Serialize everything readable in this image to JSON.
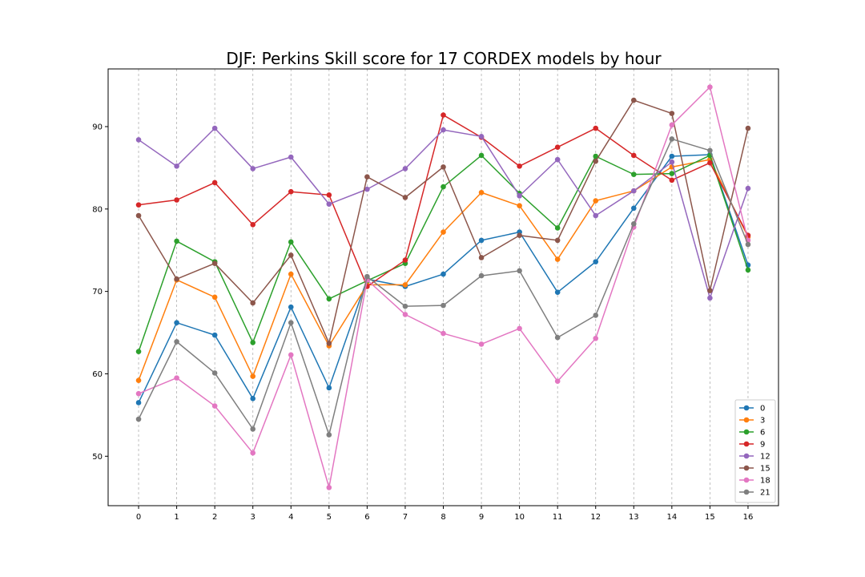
{
  "chart_data": {
    "type": "line",
    "title": "DJF: Perkins Skill score for 17 CORDEX models by hour",
    "xlabel": "",
    "ylabel": "",
    "x": [
      0,
      1,
      2,
      3,
      4,
      5,
      6,
      7,
      8,
      9,
      10,
      11,
      12,
      13,
      14,
      15,
      16
    ],
    "xlim": [
      -0.8,
      16.8
    ],
    "ylim": [
      44,
      97
    ],
    "yticks": [
      50,
      60,
      70,
      80,
      90
    ],
    "grid": "vertical dashed",
    "legend_position": "lower-right",
    "series": [
      {
        "name": "0",
        "color": "#1f77b4",
        "values": [
          56.5,
          66.2,
          64.7,
          57.0,
          68.1,
          58.3,
          71.5,
          70.6,
          72.1,
          76.2,
          77.2,
          69.9,
          73.6,
          80.1,
          86.4,
          86.6,
          73.2
        ]
      },
      {
        "name": "3",
        "color": "#ff7f0e",
        "values": [
          59.2,
          71.4,
          69.3,
          59.7,
          72.1,
          63.4,
          70.8,
          70.8,
          77.2,
          82.0,
          80.4,
          73.9,
          81.0,
          82.2,
          85.1,
          86.0,
          76.6
        ]
      },
      {
        "name": "6",
        "color": "#2ca02c",
        "values": [
          62.7,
          76.1,
          73.6,
          63.8,
          76.0,
          69.1,
          71.3,
          73.4,
          82.7,
          86.5,
          81.9,
          77.7,
          86.4,
          84.2,
          84.3,
          86.5,
          72.6
        ]
      },
      {
        "name": "9",
        "color": "#d62728",
        "values": [
          80.5,
          81.1,
          83.2,
          78.1,
          82.1,
          81.7,
          70.6,
          73.8,
          91.4,
          88.7,
          85.2,
          87.5,
          89.8,
          86.5,
          83.5,
          85.6,
          76.8
        ]
      },
      {
        "name": "12",
        "color": "#9467bd",
        "values": [
          88.4,
          85.2,
          89.8,
          84.9,
          86.3,
          80.6,
          82.4,
          84.9,
          89.6,
          88.8,
          81.6,
          86.0,
          79.2,
          82.2,
          85.7,
          69.2,
          82.5
        ]
      },
      {
        "name": "15",
        "color": "#8c564b",
        "values": [
          79.2,
          71.5,
          73.4,
          68.6,
          74.4,
          63.7,
          83.9,
          81.4,
          85.1,
          74.1,
          76.8,
          76.2,
          85.8,
          93.2,
          91.6,
          70.1,
          89.8
        ]
      },
      {
        "name": "18",
        "color": "#e377c2",
        "values": [
          57.6,
          59.5,
          56.1,
          50.4,
          62.3,
          46.2,
          71.4,
          67.2,
          64.9,
          63.6,
          65.5,
          59.1,
          64.3,
          77.8,
          90.2,
          94.8,
          76.2
        ]
      },
      {
        "name": "21",
        "color": "#7f7f7f",
        "values": [
          54.5,
          63.9,
          60.1,
          53.3,
          66.2,
          52.6,
          71.8,
          68.2,
          68.3,
          71.9,
          72.5,
          64.4,
          67.1,
          78.2,
          88.5,
          87.1,
          75.7
        ]
      }
    ]
  }
}
